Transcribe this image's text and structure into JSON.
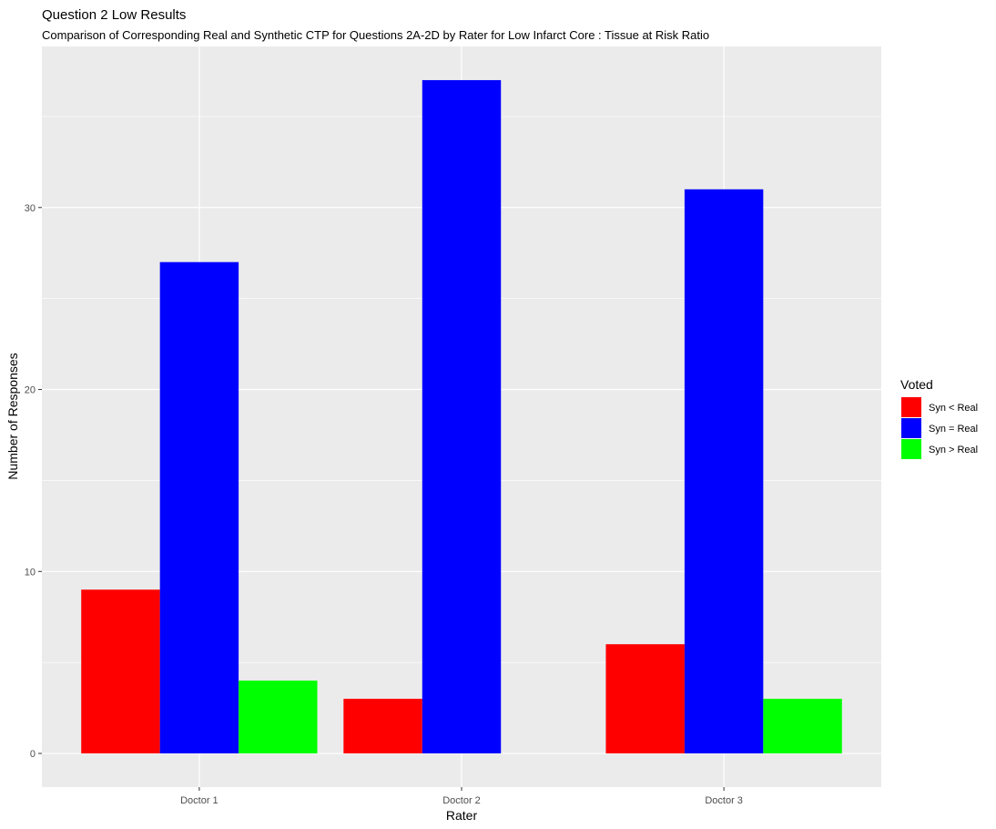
{
  "chart_data": {
    "type": "bar",
    "title": "Question 2 Low Results",
    "subtitle": "Comparison of Corresponding Real and Synthetic CTP for Questions 2A-2D by Rater for Low Infarct Core : Tissue at Risk Ratio",
    "xlabel": "Rater",
    "ylabel": "Number of Responses",
    "categories": [
      "Doctor 1",
      "Doctor 2",
      "Doctor 3"
    ],
    "series": [
      {
        "name": "Syn < Real",
        "color": "#ff0000",
        "values": [
          9,
          3,
          6
        ]
      },
      {
        "name": "Syn = Real",
        "color": "#0000ff",
        "values": [
          27,
          37,
          31
        ]
      },
      {
        "name": "Syn > Real",
        "color": "#00ff00",
        "values": [
          4,
          0,
          3
        ]
      }
    ],
    "ylim": [
      -1.85,
      38.85
    ],
    "yticks": [
      0,
      10,
      20,
      30
    ],
    "grid": true,
    "legend": {
      "title": "Voted",
      "position": "right"
    }
  }
}
